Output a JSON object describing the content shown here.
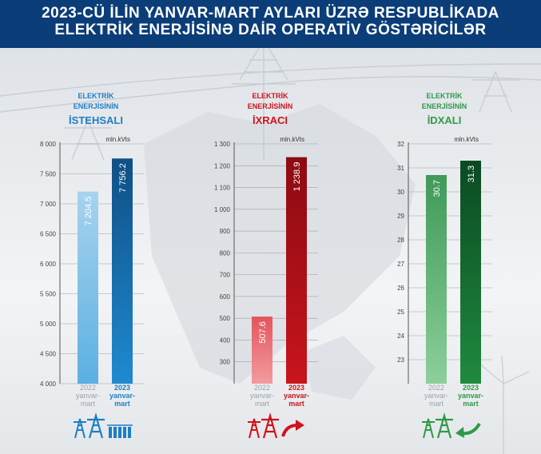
{
  "header": {
    "line1": "2023-CÜ İLİN YANVAR-MART AYLARI ÜZRƏ RESPUBLİKADA",
    "line2": "ELEKTRİK ENERJİSİNƏ DAİR OPERATİV GÖSTƏRİCİLƏR"
  },
  "chart_data": [
    {
      "type": "bar",
      "title_lines": [
        "ELEKTRİK",
        "ENERJİSİNİN",
        "İSTEHSALI"
      ],
      "unit": "mln.kVts",
      "ylim": [
        4000,
        8000
      ],
      "ticks": [
        4000,
        4500,
        5000,
        5500,
        6000,
        6500,
        7000,
        7500,
        8000
      ],
      "tick_labels": [
        "4 000",
        "4 500",
        "5 000",
        "5 500",
        "6 000",
        "6 500",
        "7 000",
        "7 500",
        "8 000"
      ],
      "categories": [
        [
          "2022",
          "yanvar-",
          "mart"
        ],
        [
          "2023",
          "yanvar-",
          "mart"
        ]
      ],
      "values": [
        7204.5,
        7756.2
      ],
      "value_labels": [
        "7 204.5",
        "7 756.2"
      ],
      "colors": {
        "accent": "#1d7fc4",
        "bar_2022_top": "#a7d3ee",
        "bar_2022_bottom": "#5bb0e2",
        "bar_2023_top": "#0f4f86",
        "bar_2023_bottom": "#1f8ad0"
      }
    },
    {
      "type": "bar",
      "title_lines": [
        "ELEKTRİK",
        "ENERJİSİNİN",
        "İXRACI"
      ],
      "unit": "mln.kVts",
      "ylim": [
        200,
        1300
      ],
      "ticks": [
        300,
        400,
        500,
        600,
        700,
        800,
        900,
        1000,
        1100,
        1200,
        1300
      ],
      "tick_labels": [
        "300",
        "400",
        "500",
        "600",
        "700",
        "800",
        "900",
        "1 000",
        "1 100",
        "1 200",
        "1 300"
      ],
      "categories": [
        [
          "2022",
          "yanvar-",
          "mart"
        ],
        [
          "2023",
          "yanvar-",
          "mart"
        ]
      ],
      "values": [
        507.6,
        1238.9
      ],
      "value_labels": [
        "507.6",
        "1 238.9"
      ],
      "colors": {
        "accent": "#d0121c",
        "bar_2022_top": "#e2565c",
        "bar_2022_bottom": "#f39ba0",
        "bar_2023_top": "#8c0b12",
        "bar_2023_bottom": "#c9141d"
      }
    },
    {
      "type": "bar",
      "title_lines": [
        "ELEKTRİK",
        "ENERJİSİNİN",
        "İDXALI"
      ],
      "unit": "mln.kVts",
      "ylim": [
        22,
        32
      ],
      "ticks": [
        23,
        24,
        25,
        26,
        27,
        28,
        29,
        30,
        31,
        32
      ],
      "tick_labels": [
        "23",
        "24",
        "25",
        "26",
        "27",
        "28",
        "29",
        "30",
        "31",
        "32"
      ],
      "categories": [
        [
          "2022",
          "yanvar-",
          "mart"
        ],
        [
          "2023",
          "yanvar-",
          "mart"
        ]
      ],
      "values": [
        30.7,
        31.3
      ],
      "value_labels": [
        "30.7",
        "31.3"
      ],
      "colors": {
        "accent": "#2e9a48",
        "bar_2022_top": "#3f9a58",
        "bar_2022_bottom": "#8ccf9b",
        "bar_2023_top": "#0b4a22",
        "bar_2023_bottom": "#1f8a3f"
      }
    }
  ],
  "icons": [
    "power-tower-substation-icon",
    "power-tower-export-icon",
    "power-tower-import-icon"
  ]
}
